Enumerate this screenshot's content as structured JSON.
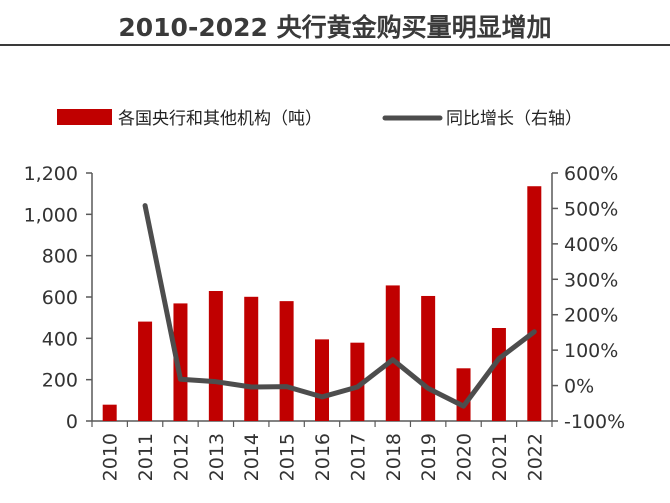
{
  "title": "2010-2022 央行黄金购买量明显增加",
  "colors": {
    "bar": "#c00000",
    "line": "#4d4d4d",
    "axis": "#595959",
    "text": "#333333"
  },
  "chart_data": {
    "type": "bar+line",
    "title": "2010-2022 央行黄金购买量明显增加",
    "categories": [
      "2010",
      "2011",
      "2012",
      "2013",
      "2014",
      "2015",
      "2016",
      "2017",
      "2018",
      "2019",
      "2020",
      "2021",
      "2022"
    ],
    "series": [
      {
        "name": "各国央行和其他机构（吨）",
        "type": "bar",
        "axis": "left",
        "values": [
          79,
          481,
          569,
          629,
          601,
          580,
          395,
          379,
          656,
          605,
          255,
          450,
          1136
        ]
      },
      {
        "name": "同比增长（右轴）",
        "type": "line",
        "axis": "right",
        "values": [
          null,
          508,
          18,
          11,
          -4,
          -3,
          -32,
          -4,
          73,
          -8,
          -58,
          76,
          152
        ]
      }
    ],
    "left_axis": {
      "ylim": [
        0,
        1200
      ],
      "ticks": [
        "0",
        "200",
        "400",
        "600",
        "800",
        "1,000",
        "1,200"
      ]
    },
    "right_axis": {
      "ylim": [
        -100,
        600
      ],
      "ticks": [
        "-100%",
        "0%",
        "100%",
        "200%",
        "300%",
        "400%",
        "500%",
        "600%"
      ]
    },
    "legend": {
      "position": "top",
      "items": [
        "各国央行和其他机构（吨）",
        "同比增长（右轴）"
      ]
    },
    "grid": false
  }
}
